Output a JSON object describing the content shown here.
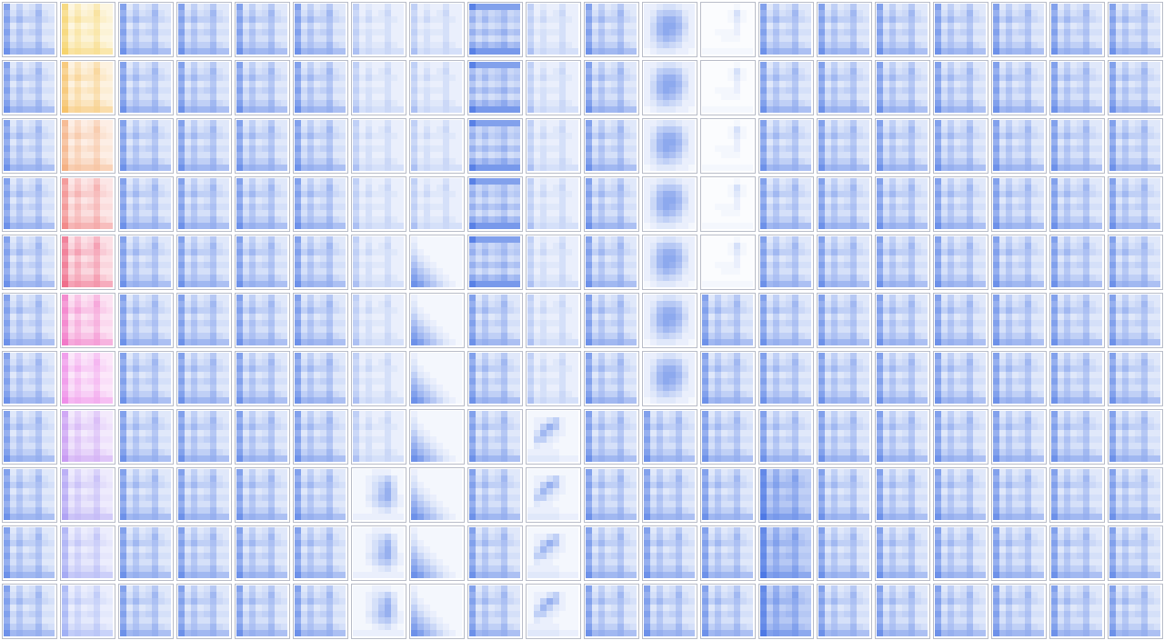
{
  "chart_data": {
    "type": "heatmap",
    "tick_labels": false,
    "cells": [
      [
        [
          0.6,
          0.15,
          0.3,
          0.15,
          0.2,
          0.35,
          0.15,
          0.15
        ],
        [
          0.5,
          0.2,
          0.35,
          0.2,
          0.25,
          0.45,
          0.2,
          0.15
        ],
        [
          0.6,
          0.3,
          0.45,
          0.3,
          0.3,
          0.4,
          0.25,
          0.2
        ],
        [
          0.5,
          0.15,
          0.3,
          0.15,
          0.2,
          0.35,
          0.15,
          0.15
        ],
        [
          0.6,
          0.25,
          0.4,
          0.25,
          0.3,
          0.4,
          0.2,
          0.2
        ],
        [
          0.5,
          0.2,
          0.35,
          0.2,
          0.2,
          0.35,
          0.15,
          0.15
        ],
        [
          0.6,
          0.3,
          0.4,
          0.3,
          0.3,
          0.45,
          0.25,
          0.2
        ],
        [
          0.7,
          0.45,
          0.5,
          0.45,
          0.45,
          0.5,
          0.4,
          0.4
        ]
      ],
      [
        [
          0.3,
          0.1,
          0.15,
          0.1,
          0.1,
          0.2,
          0.1,
          0.1
        ],
        [
          0.25,
          0.1,
          0.2,
          0.1,
          0.15,
          0.25,
          0.1,
          0.1
        ],
        [
          0.3,
          0.15,
          0.25,
          0.15,
          0.15,
          0.2,
          0.15,
          0.1
        ],
        [
          0.25,
          0.1,
          0.15,
          0.1,
          0.1,
          0.2,
          0.1,
          0.1
        ],
        [
          0.3,
          0.15,
          0.2,
          0.15,
          0.15,
          0.2,
          0.1,
          0.1
        ],
        [
          0.25,
          0.1,
          0.2,
          0.1,
          0.1,
          0.2,
          0.1,
          0.1
        ],
        [
          0.3,
          0.15,
          0.2,
          0.15,
          0.15,
          0.25,
          0.15,
          0.1
        ],
        [
          0.4,
          0.2,
          0.25,
          0.2,
          0.2,
          0.25,
          0.2,
          0.2
        ]
      ],
      [
        [
          0.1,
          0.05,
          0.05,
          0.05,
          0.05,
          0.05,
          0.05,
          0.05
        ],
        [
          0.15,
          0.05,
          0.05,
          0.05,
          0.05,
          0.05,
          0.05,
          0.05
        ],
        [
          0.2,
          0.1,
          0.05,
          0.05,
          0.05,
          0.05,
          0.05,
          0.05
        ],
        [
          0.3,
          0.15,
          0.1,
          0.05,
          0.05,
          0.05,
          0.05,
          0.05
        ],
        [
          0.4,
          0.25,
          0.15,
          0.1,
          0.05,
          0.05,
          0.05,
          0.05
        ],
        [
          0.5,
          0.35,
          0.25,
          0.15,
          0.1,
          0.05,
          0.05,
          0.05
        ],
        [
          0.6,
          0.45,
          0.35,
          0.25,
          0.15,
          0.1,
          0.05,
          0.05
        ],
        [
          0.7,
          0.6,
          0.45,
          0.35,
          0.25,
          0.15,
          0.1,
          0.05
        ]
      ],
      [
        [
          0.8,
          0.6,
          0.6,
          0.6,
          0.6,
          0.6,
          0.6,
          0.6
        ],
        [
          0.4,
          0.25,
          0.35,
          0.25,
          0.3,
          0.4,
          0.25,
          0.3
        ],
        [
          0.5,
          0.3,
          0.45,
          0.3,
          0.35,
          0.45,
          0.3,
          0.35
        ],
        [
          0.35,
          0.2,
          0.3,
          0.2,
          0.25,
          0.35,
          0.2,
          0.25
        ],
        [
          0.5,
          0.35,
          0.45,
          0.35,
          0.4,
          0.5,
          0.35,
          0.4
        ],
        [
          0.35,
          0.2,
          0.3,
          0.2,
          0.25,
          0.35,
          0.2,
          0.25
        ],
        [
          0.55,
          0.4,
          0.5,
          0.4,
          0.45,
          0.55,
          0.4,
          0.45
        ],
        [
          0.8,
          0.65,
          0.65,
          0.65,
          0.65,
          0.65,
          0.65,
          0.65
        ]
      ],
      [
        [
          0.1,
          0.1,
          0.15,
          0.2,
          0.2,
          0.15,
          0.1,
          0.1
        ],
        [
          0.1,
          0.15,
          0.3,
          0.35,
          0.35,
          0.3,
          0.15,
          0.1
        ],
        [
          0.1,
          0.2,
          0.4,
          0.5,
          0.5,
          0.4,
          0.2,
          0.1
        ],
        [
          0.1,
          0.25,
          0.45,
          0.55,
          0.55,
          0.45,
          0.25,
          0.1
        ],
        [
          0.1,
          0.25,
          0.45,
          0.55,
          0.5,
          0.4,
          0.2,
          0.1
        ],
        [
          0.1,
          0.2,
          0.35,
          0.45,
          0.4,
          0.3,
          0.15,
          0.1
        ],
        [
          0.1,
          0.15,
          0.25,
          0.3,
          0.25,
          0.2,
          0.1,
          0.1
        ],
        [
          0.05,
          0.1,
          0.15,
          0.15,
          0.15,
          0.1,
          0.1,
          0.05
        ]
      ],
      [
        [
          0.02,
          0.02,
          0.02,
          0.02,
          0.02,
          0.05,
          0.02,
          0.02
        ],
        [
          0.02,
          0.02,
          0.02,
          0.02,
          0.05,
          0.2,
          0.05,
          0.02
        ],
        [
          0.02,
          0.02,
          0.02,
          0.02,
          0.05,
          0.15,
          0.05,
          0.02
        ],
        [
          0.02,
          0.02,
          0.02,
          0.02,
          0.02,
          0.1,
          0.02,
          0.02
        ],
        [
          0.02,
          0.02,
          0.05,
          0.05,
          0.05,
          0.1,
          0.02,
          0.02
        ],
        [
          0.02,
          0.02,
          0.02,
          0.05,
          0.05,
          0.05,
          0.02,
          0.02
        ],
        [
          0.02,
          0.02,
          0.02,
          0.02,
          0.02,
          0.02,
          0.02,
          0.02
        ],
        [
          0.05,
          0.05,
          0.05,
          0.05,
          0.05,
          0.05,
          0.05,
          0.05
        ]
      ],
      [
        [
          0.05,
          0.05,
          0.05,
          0.05,
          0.05,
          0.05,
          0.05,
          0.05
        ],
        [
          0.05,
          0.1,
          0.1,
          0.2,
          0.3,
          0.1,
          0.05,
          0.05
        ],
        [
          0.05,
          0.1,
          0.3,
          0.5,
          0.35,
          0.1,
          0.05,
          0.05
        ],
        [
          0.05,
          0.2,
          0.45,
          0.3,
          0.15,
          0.1,
          0.05,
          0.05
        ],
        [
          0.05,
          0.3,
          0.3,
          0.15,
          0.1,
          0.05,
          0.05,
          0.05
        ],
        [
          0.05,
          0.15,
          0.1,
          0.1,
          0.05,
          0.05,
          0.05,
          0.05
        ],
        [
          0.1,
          0.1,
          0.1,
          0.1,
          0.1,
          0.05,
          0.05,
          0.05
        ],
        [
          0.15,
          0.15,
          0.15,
          0.15,
          0.15,
          0.1,
          0.1,
          0.1
        ]
      ],
      [
        [
          0.05,
          0.05,
          0.05,
          0.1,
          0.1,
          0.1,
          0.05,
          0.05
        ],
        [
          0.05,
          0.05,
          0.1,
          0.15,
          0.2,
          0.3,
          0.15,
          0.05
        ],
        [
          0.05,
          0.05,
          0.1,
          0.2,
          0.3,
          0.45,
          0.2,
          0.05
        ],
        [
          0.05,
          0.05,
          0.1,
          0.2,
          0.35,
          0.5,
          0.25,
          0.05
        ],
        [
          0.05,
          0.05,
          0.15,
          0.25,
          0.4,
          0.5,
          0.25,
          0.1
        ],
        [
          0.05,
          0.05,
          0.1,
          0.2,
          0.3,
          0.35,
          0.2,
          0.1
        ],
        [
          0.05,
          0.05,
          0.05,
          0.1,
          0.15,
          0.2,
          0.1,
          0.05
        ],
        [
          0.1,
          0.1,
          0.1,
          0.1,
          0.1,
          0.1,
          0.1,
          0.1
        ]
      ],
      [
        [
          0.75,
          0.3,
          0.5,
          0.3,
          0.35,
          0.5,
          0.3,
          0.3
        ],
        [
          0.7,
          0.35,
          0.55,
          0.35,
          0.4,
          0.6,
          0.35,
          0.3
        ],
        [
          0.75,
          0.45,
          0.6,
          0.45,
          0.45,
          0.55,
          0.4,
          0.35
        ],
        [
          0.7,
          0.3,
          0.5,
          0.3,
          0.35,
          0.5,
          0.3,
          0.3
        ],
        [
          0.75,
          0.4,
          0.55,
          0.4,
          0.45,
          0.55,
          0.35,
          0.35
        ],
        [
          0.7,
          0.35,
          0.5,
          0.35,
          0.35,
          0.5,
          0.3,
          0.3
        ],
        [
          0.75,
          0.45,
          0.55,
          0.45,
          0.45,
          0.6,
          0.4,
          0.35
        ],
        [
          0.85,
          0.6,
          0.65,
          0.6,
          0.6,
          0.65,
          0.55,
          0.55
        ]
      ]
    ],
    "panels": [
      [
        0,
        0,
        0,
        0,
        0,
        0,
        1,
        1,
        3,
        1,
        0,
        4,
        5,
        0,
        0,
        0,
        0,
        0,
        0,
        0
      ],
      [
        0,
        0,
        0,
        0,
        0,
        0,
        1,
        1,
        3,
        1,
        0,
        4,
        5,
        0,
        0,
        0,
        0,
        0,
        0,
        0
      ],
      [
        0,
        0,
        0,
        0,
        0,
        0,
        1,
        1,
        3,
        1,
        0,
        4,
        5,
        0,
        0,
        0,
        0,
        0,
        0,
        0
      ],
      [
        0,
        0,
        0,
        0,
        0,
        0,
        1,
        1,
        3,
        1,
        0,
        4,
        5,
        0,
        0,
        0,
        0,
        0,
        0,
        0
      ],
      [
        0,
        0,
        0,
        0,
        0,
        0,
        1,
        2,
        3,
        1,
        0,
        4,
        5,
        0,
        0,
        0,
        0,
        0,
        0,
        0
      ],
      [
        0,
        0,
        0,
        0,
        0,
        0,
        1,
        2,
        0,
        1,
        0,
        4,
        0,
        0,
        0,
        0,
        0,
        0,
        0,
        0
      ],
      [
        0,
        0,
        0,
        0,
        0,
        0,
        1,
        2,
        0,
        1,
        0,
        4,
        0,
        0,
        0,
        0,
        0,
        0,
        0,
        0
      ],
      [
        0,
        0,
        0,
        0,
        0,
        0,
        1,
        2,
        0,
        6,
        0,
        0,
        0,
        0,
        0,
        0,
        0,
        0,
        0,
        0
      ],
      [
        0,
        0,
        0,
        0,
        0,
        0,
        7,
        2,
        0,
        6,
        0,
        0,
        0,
        8,
        0,
        0,
        0,
        0,
        0,
        0
      ],
      [
        0,
        0,
        0,
        0,
        0,
        0,
        7,
        2,
        0,
        6,
        0,
        0,
        0,
        8,
        0,
        0,
        0,
        0,
        0,
        0
      ],
      [
        0,
        0,
        0,
        0,
        0,
        0,
        7,
        2,
        0,
        6,
        0,
        0,
        0,
        8,
        0,
        0,
        0,
        0,
        0,
        0
      ]
    ],
    "colors": [
      [
        "#2f62e0",
        "#f2c230",
        "#2f62e0",
        "#2f62e0",
        "#2f62e0",
        "#2f62e0",
        "#2f62e0",
        "#2f62e0",
        "#2f62e0",
        "#2f62e0",
        "#2f62e0",
        "#2f62e0",
        "#2f62e0",
        "#2f62e0",
        "#2f62e0",
        "#2f62e0",
        "#2f62e0",
        "#2f62e0",
        "#2f62e0",
        "#2f62e0"
      ],
      [
        "#2f62e0",
        "#f2a92c",
        "#2f62e0",
        "#2f62e0",
        "#2f62e0",
        "#2f62e0",
        "#2f62e0",
        "#2f62e0",
        "#2f62e0",
        "#2f62e0",
        "#2f62e0",
        "#2f62e0",
        "#2f62e0",
        "#2f62e0",
        "#2f62e0",
        "#2f62e0",
        "#2f62e0",
        "#2f62e0",
        "#2f62e0",
        "#2f62e0"
      ],
      [
        "#2f62e0",
        "#f09050",
        "#2f62e0",
        "#2f62e0",
        "#2f62e0",
        "#2f62e0",
        "#2f62e0",
        "#2f62e0",
        "#2f62e0",
        "#2f62e0",
        "#2f62e0",
        "#2f62e0",
        "#2f62e0",
        "#2f62e0",
        "#2f62e0",
        "#2f62e0",
        "#2f62e0",
        "#2f62e0",
        "#2f62e0",
        "#2f62e0"
      ],
      [
        "#2f62e0",
        "#ec5a5a",
        "#2f62e0",
        "#2f62e0",
        "#2f62e0",
        "#2f62e0",
        "#2f62e0",
        "#2f62e0",
        "#2f62e0",
        "#2f62e0",
        "#2f62e0",
        "#2f62e0",
        "#2f62e0",
        "#2f62e0",
        "#2f62e0",
        "#2f62e0",
        "#2f62e0",
        "#2f62e0",
        "#2f62e0",
        "#2f62e0"
      ],
      [
        "#2f62e0",
        "#e8305a",
        "#2f62e0",
        "#2f62e0",
        "#2f62e0",
        "#2f62e0",
        "#2f62e0",
        "#2f62e0",
        "#2f62e0",
        "#2f62e0",
        "#2f62e0",
        "#2f62e0",
        "#2f62e0",
        "#2f62e0",
        "#2f62e0",
        "#2f62e0",
        "#2f62e0",
        "#2f62e0",
        "#2f62e0",
        "#2f62e0"
      ],
      [
        "#2f62e0",
        "#ec40b0",
        "#2f62e0",
        "#2f62e0",
        "#2f62e0",
        "#2f62e0",
        "#2f62e0",
        "#2f62e0",
        "#2f62e0",
        "#2f62e0",
        "#2f62e0",
        "#2f62e0",
        "#2f62e0",
        "#2f62e0",
        "#2f62e0",
        "#2f62e0",
        "#2f62e0",
        "#2f62e0",
        "#2f62e0",
        "#2f62e0"
      ],
      [
        "#2f62e0",
        "#e860e0",
        "#2f62e0",
        "#2f62e0",
        "#2f62e0",
        "#2f62e0",
        "#2f62e0",
        "#2f62e0",
        "#2f62e0",
        "#2f62e0",
        "#2f62e0",
        "#2f62e0",
        "#2f62e0",
        "#2f62e0",
        "#2f62e0",
        "#2f62e0",
        "#2f62e0",
        "#2f62e0",
        "#2f62e0",
        "#2f62e0"
      ],
      [
        "#2f62e0",
        "#b070ee",
        "#2f62e0",
        "#2f62e0",
        "#2f62e0",
        "#2f62e0",
        "#2f62e0",
        "#2f62e0",
        "#2f62e0",
        "#2f62e0",
        "#2f62e0",
        "#2f62e0",
        "#2f62e0",
        "#2f62e0",
        "#2f62e0",
        "#2f62e0",
        "#2f62e0",
        "#2f62e0",
        "#2f62e0",
        "#2f62e0"
      ],
      [
        "#2f62e0",
        "#8f7cf0",
        "#2f62e0",
        "#2f62e0",
        "#2f62e0",
        "#2f62e0",
        "#2f62e0",
        "#2f62e0",
        "#2f62e0",
        "#2f62e0",
        "#2f62e0",
        "#2f62e0",
        "#2f62e0",
        "#2f62e0",
        "#2f62e0",
        "#2f62e0",
        "#2f62e0",
        "#2f62e0",
        "#2f62e0",
        "#2f62e0"
      ],
      [
        "#2f62e0",
        "#8088f0",
        "#2f62e0",
        "#2f62e0",
        "#2f62e0",
        "#2f62e0",
        "#2f62e0",
        "#2f62e0",
        "#2f62e0",
        "#2f62e0",
        "#2f62e0",
        "#2f62e0",
        "#2f62e0",
        "#2f62e0",
        "#2f62e0",
        "#2f62e0",
        "#2f62e0",
        "#2f62e0",
        "#2f62e0",
        "#2f62e0"
      ],
      [
        "#2f62e0",
        "#7890f0",
        "#2f62e0",
        "#2f62e0",
        "#2f62e0",
        "#2f62e0",
        "#2f62e0",
        "#2f62e0",
        "#2f62e0",
        "#2f62e0",
        "#2f62e0",
        "#2f62e0",
        "#2f62e0",
        "#2f62e0",
        "#2f62e0",
        "#2f62e0",
        "#2f62e0",
        "#2f62e0",
        "#2f62e0",
        "#2f62e0"
      ]
    ]
  }
}
